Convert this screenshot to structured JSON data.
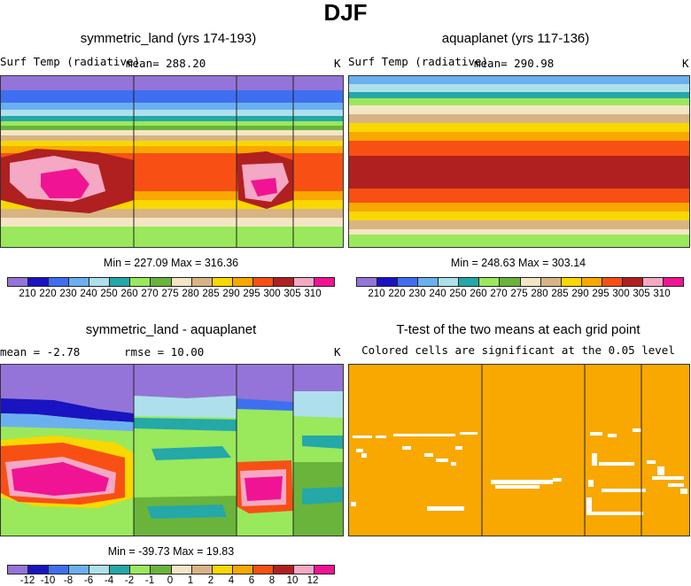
{
  "title": "DJF",
  "panels": {
    "sym": {
      "title": "symmetric_land (yrs 174-193)",
      "var_label": "Surf Temp (radiative)",
      "mean_label": "mean=  288.20",
      "units": "K",
      "minmax": "Min = 227.09 Max = 316.36"
    },
    "aqua": {
      "title": "aquaplanet (yrs 117-136)",
      "var_label": "Surf Temp (radiative)",
      "mean_label": "mean=  290.98",
      "units": "K",
      "minmax": "Min = 248.63 Max = 303.14"
    },
    "diff": {
      "title": "symmetric_land - aquaplanet",
      "mean_label": "mean =   -2.78",
      "rmse_label": "rmse =  10.00",
      "units": "K",
      "minmax": "Min = -39.73 Max =  19.83"
    },
    "ttest": {
      "title": "T-test of the two means at each grid point",
      "subtitle": "Colored cells are significant at the 0.05 level"
    }
  },
  "colorbar_abs": {
    "levels": [
      "210",
      "220",
      "230",
      "240",
      "250",
      "260",
      "270",
      "275",
      "280",
      "285",
      "290",
      "295",
      "300",
      "305",
      "310"
    ],
    "colors": [
      "#9474d8",
      "#1a13c2",
      "#3e6ff0",
      "#6ab0f0",
      "#aee0ec",
      "#24a8a8",
      "#9ae85c",
      "#6ab43c",
      "#f4e6c4",
      "#d8b484",
      "#f8d800",
      "#f8a800",
      "#f85014",
      "#b02020",
      "#f4a8c4",
      "#f01494"
    ]
  },
  "colorbar_diff": {
    "levels": [
      "-12",
      "-10",
      "-8",
      "-6",
      "-4",
      "-2",
      "-1",
      "0",
      "1",
      "2",
      "4",
      "6",
      "8",
      "10",
      "12"
    ],
    "colors": [
      "#9474d8",
      "#1a13c2",
      "#3e6ff0",
      "#6ab0f0",
      "#aee0ec",
      "#24a8a8",
      "#9ae85c",
      "#6ab43c",
      "#f4e6c4",
      "#d8b484",
      "#f8d800",
      "#f8a800",
      "#f85014",
      "#b02020",
      "#f4a8c4",
      "#f01494"
    ]
  },
  "chart_data": [
    {
      "type": "heatmap",
      "title": "symmetric_land (yrs 174-193)",
      "variable": "Surf Temp (radiative)",
      "units": "K",
      "mean": 288.2,
      "min": 227.09,
      "max": 316.36,
      "colorbar_levels": [
        210,
        220,
        230,
        240,
        250,
        260,
        270,
        275,
        280,
        285,
        290,
        295,
        300,
        305,
        310
      ]
    },
    {
      "type": "heatmap",
      "title": "aquaplanet (yrs 117-136)",
      "variable": "Surf Temp (radiative)",
      "units": "K",
      "mean": 290.98,
      "min": 248.63,
      "max": 303.14,
      "colorbar_levels": [
        210,
        220,
        230,
        240,
        250,
        260,
        270,
        275,
        280,
        285,
        290,
        295,
        300,
        305,
        310
      ]
    },
    {
      "type": "heatmap",
      "title": "symmetric_land - aquaplanet",
      "units": "K",
      "mean": -2.78,
      "rmse": 10.0,
      "min": -39.73,
      "max": 19.83,
      "colorbar_levels": [
        -12,
        -10,
        -8,
        -6,
        -4,
        -2,
        -1,
        0,
        1,
        2,
        4,
        6,
        8,
        10,
        12
      ]
    },
    {
      "type": "heatmap",
      "title": "T-test of the two means at each grid point",
      "subtitle": "Colored cells are significant at the 0.05 level",
      "significance_level": 0.05,
      "significant_color": "#f8a800"
    }
  ]
}
